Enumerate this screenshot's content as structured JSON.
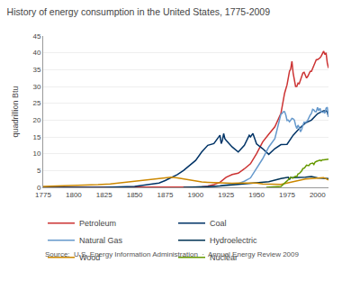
{
  "chart_data": {
    "type": "line",
    "title": "History of energy consumption in the United States, 1775-2009",
    "ylabel": "quadrillion Btu",
    "annotations": [
      "Source:  U.S. Energy Information Administration  ·  Annual Energy Review 2009"
    ],
    "xlim": [
      1775,
      2009
    ],
    "ylim": [
      0,
      45
    ],
    "xticks": [
      1775,
      1800,
      1825,
      1850,
      1875,
      1900,
      1925,
      1950,
      1975,
      2000
    ],
    "yticks": [
      0,
      5,
      10,
      15,
      20,
      25,
      30,
      35,
      40,
      45
    ],
    "grid": true,
    "legend": "bottom",
    "series": [
      {
        "name": "Petroleum",
        "color": "#cc3333",
        "x": [
          1775,
          1800,
          1850,
          1860,
          1870,
          1880,
          1890,
          1900,
          1905,
          1910,
          1915,
          1920,
          1925,
          1930,
          1935,
          1940,
          1945,
          1950,
          1955,
          1960,
          1965,
          1970,
          1973,
          1975,
          1977,
          1978,
          1979,
          1980,
          1981,
          1982,
          1983,
          1984,
          1985,
          1986,
          1987,
          1988,
          1989,
          1990,
          1991,
          1992,
          1993,
          1994,
          1995,
          1996,
          1997,
          1998,
          1999,
          2000,
          2001,
          2002,
          2003,
          2004,
          2005,
          2006,
          2007,
          2008,
          2009
        ],
        "values": [
          0.0,
          0.0,
          0.0,
          0.01,
          0.02,
          0.04,
          0.05,
          0.1,
          0.15,
          0.4,
          0.8,
          1.5,
          3.0,
          3.8,
          4.2,
          5.5,
          7.0,
          10.0,
          13.5,
          15.8,
          18.0,
          22.0,
          28.0,
          30.5,
          34.5,
          35.2,
          37.5,
          34.0,
          31.5,
          30.0,
          30.0,
          31.0,
          30.8,
          32.0,
          32.8,
          34.0,
          34.2,
          33.5,
          32.5,
          33.0,
          33.8,
          34.5,
          34.5,
          35.5,
          36.0,
          37.0,
          38.0,
          38.0,
          38.2,
          38.5,
          39.0,
          40.0,
          40.5,
          39.5,
          40.0,
          37.0,
          35.5
        ]
      },
      {
        "name": "Coal",
        "color": "#003366",
        "x": [
          1775,
          1800,
          1825,
          1850,
          1855,
          1860,
          1865,
          1870,
          1875,
          1880,
          1885,
          1890,
          1895,
          1900,
          1905,
          1910,
          1915,
          1920,
          1921,
          1922,
          1923,
          1924,
          1925,
          1930,
          1935,
          1940,
          1944,
          1945,
          1947,
          1950,
          1955,
          1960,
          1965,
          1970,
          1975,
          1980,
          1985,
          1990,
          1995,
          2000,
          2005,
          2007,
          2008,
          2009
        ],
        "values": [
          0.0,
          0.0,
          0.0,
          0.3,
          0.5,
          0.7,
          1.0,
          1.3,
          2.0,
          2.8,
          3.8,
          5.0,
          6.5,
          8.0,
          10.5,
          12.5,
          13.0,
          15.5,
          13.0,
          14.0,
          16.0,
          14.5,
          14.0,
          12.0,
          10.5,
          12.5,
          15.5,
          15.0,
          16.0,
          12.9,
          11.5,
          9.8,
          11.5,
          12.7,
          12.8,
          15.5,
          17.5,
          19.1,
          20.0,
          21.9,
          22.8,
          22.8,
          22.4,
          21.0
        ]
      },
      {
        "name": "Natural Gas",
        "color": "#6699cc",
        "x": [
          1900,
          1905,
          1910,
          1915,
          1920,
          1925,
          1930,
          1935,
          1940,
          1945,
          1950,
          1955,
          1960,
          1965,
          1970,
          1971,
          1972,
          1973,
          1974,
          1975,
          1976,
          1977,
          1978,
          1979,
          1980,
          1981,
          1982,
          1983,
          1984,
          1985,
          1986,
          1987,
          1988,
          1989,
          1990,
          1991,
          1992,
          1993,
          1994,
          1995,
          1996,
          1997,
          1998,
          1999,
          2000,
          2001,
          2002,
          2003,
          2004,
          2005,
          2006,
          2007,
          2008,
          2009
        ],
        "values": [
          0.05,
          0.1,
          0.2,
          0.3,
          0.5,
          0.8,
          1.0,
          1.1,
          1.8,
          2.8,
          5.5,
          8.5,
          12.0,
          14.5,
          21.8,
          22.0,
          22.5,
          22.5,
          21.5,
          19.9,
          20.0,
          19.5,
          20.0,
          20.5,
          20.4,
          20.0,
          18.5,
          17.5,
          18.5,
          17.8,
          16.5,
          17.2,
          18.5,
          19.4,
          19.3,
          19.5,
          20.0,
          21.0,
          21.5,
          22.0,
          23.2,
          23.0,
          22.5,
          22.5,
          23.8,
          22.8,
          23.5,
          22.5,
          22.3,
          22.4,
          22.0,
          23.5,
          23.8,
          21.0
        ]
      },
      {
        "name": "Hydroelectric",
        "color": "#003355",
        "x": [
          1890,
          1900,
          1910,
          1920,
          1930,
          1940,
          1950,
          1960,
          1970,
          1975,
          1976,
          1977,
          1978,
          1979,
          1980,
          1985,
          1990,
          1995,
          2000,
          2005,
          2009
        ],
        "values": [
          0.0,
          0.05,
          0.2,
          0.4,
          0.7,
          1.0,
          1.4,
          1.65,
          2.6,
          3.1,
          3.0,
          2.3,
          2.9,
          2.9,
          2.9,
          2.9,
          3.0,
          3.2,
          2.8,
          2.7,
          2.6
        ]
      },
      {
        "name": "Wood",
        "color": "#cc8800",
        "x": [
          1775,
          1800,
          1810,
          1820,
          1830,
          1840,
          1850,
          1860,
          1865,
          1870,
          1875,
          1880,
          1885,
          1890,
          1895,
          1900,
          1905,
          1910,
          1915,
          1920,
          1925,
          1930,
          1935,
          1940,
          1945,
          1950,
          1955,
          1960,
          1965,
          1970,
          1975,
          1980,
          1985,
          1990,
          1995,
          2000,
          2005,
          2009
        ],
        "values": [
          0.3,
          0.5,
          0.6,
          0.8,
          1.0,
          1.4,
          1.9,
          2.3,
          2.5,
          2.6,
          2.9,
          3.0,
          2.8,
          2.5,
          2.2,
          1.8,
          1.6,
          1.5,
          1.4,
          1.3,
          1.3,
          1.2,
          1.3,
          1.3,
          1.5,
          1.3,
          1.0,
          0.9,
          0.8,
          0.9,
          1.3,
          1.8,
          2.1,
          2.5,
          2.7,
          2.7,
          2.9,
          2.2
        ]
      },
      {
        "name": "Nuclear",
        "color": "#669900",
        "x": [
          1958,
          1960,
          1965,
          1970,
          1975,
          1977,
          1978,
          1979,
          1980,
          1981,
          1982,
          1983,
          1984,
          1985,
          1986,
          1987,
          1988,
          1989,
          1990,
          1991,
          1992,
          1993,
          1994,
          1995,
          1996,
          1997,
          1998,
          1999,
          2000,
          2001,
          2002,
          2003,
          2004,
          2005,
          2006,
          2007,
          2008,
          2009
        ],
        "values": [
          0.0,
          0.01,
          0.04,
          0.24,
          1.9,
          2.7,
          3.0,
          2.8,
          2.74,
          3.1,
          3.3,
          3.2,
          4.0,
          4.1,
          4.5,
          4.9,
          5.6,
          5.7,
          6.1,
          6.6,
          6.5,
          6.5,
          7.0,
          7.1,
          7.2,
          6.8,
          7.5,
          7.7,
          7.9,
          8.0,
          8.1,
          7.9,
          8.2,
          8.2,
          8.3,
          8.4,
          8.4,
          8.4
        ]
      }
    ]
  }
}
